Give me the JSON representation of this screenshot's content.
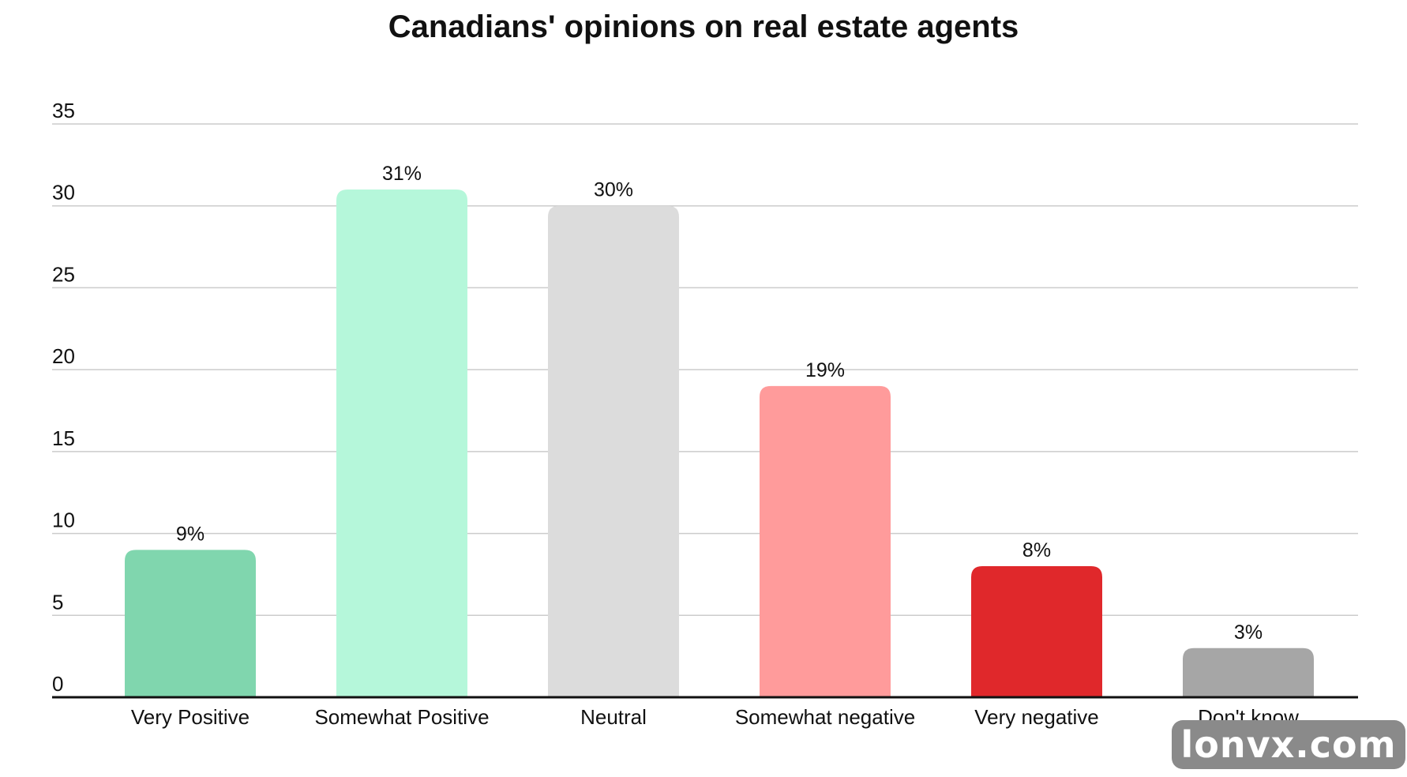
{
  "chart_data": {
    "type": "bar",
    "title": "Canadians' opinions on real estate agents",
    "xlabel": "",
    "ylabel": "",
    "categories": [
      "Very Positive",
      "Somewhat Positive",
      "Neutral",
      "Somewhat negative",
      "Very negative",
      "Don't know"
    ],
    "values": [
      9,
      31,
      30,
      19,
      8,
      3
    ],
    "value_labels": [
      "9%",
      "31%",
      "30%",
      "19%",
      "8%",
      "3%"
    ],
    "colors": [
      "#80d6ae",
      "#b5f7da",
      "#dcdcdc",
      "#ff9b9b",
      "#e0282b",
      "#a6a6a6"
    ],
    "ylim": [
      0,
      35
    ],
    "yticks": [
      0,
      5,
      10,
      15,
      20,
      25,
      30,
      35
    ],
    "grid": true,
    "legend": "none"
  },
  "watermark": "lonvx.com"
}
